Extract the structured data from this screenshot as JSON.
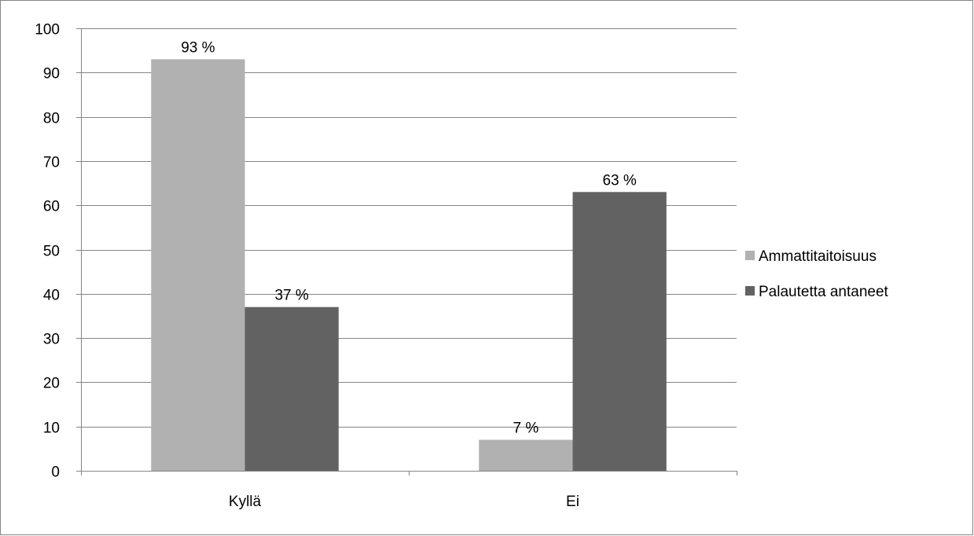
{
  "chart_data": {
    "type": "bar",
    "title": "",
    "xlabel": "",
    "ylabel": "",
    "categories": [
      "Kyllä",
      "Ei"
    ],
    "series": [
      {
        "name": "Ammattitaitoisuus",
        "values": [
          93,
          7
        ],
        "labels": [
          "93 %",
          "7 %"
        ],
        "color": "#b1b1b1"
      },
      {
        "name": "Palautetta antaneet",
        "values": [
          37,
          63
        ],
        "labels": [
          "37 %",
          "63 %"
        ],
        "color": "#626262"
      }
    ],
    "ylim": [
      0,
      100
    ],
    "yticks": [
      0,
      10,
      20,
      30,
      40,
      50,
      60,
      70,
      80,
      90,
      100
    ],
    "ytick_labels": [
      "0",
      "10",
      "20",
      "30",
      "40",
      "50",
      "60",
      "70",
      "80",
      "90",
      "100"
    ],
    "grid": true,
    "gridline_color": "#858585",
    "legend_position": "right"
  }
}
